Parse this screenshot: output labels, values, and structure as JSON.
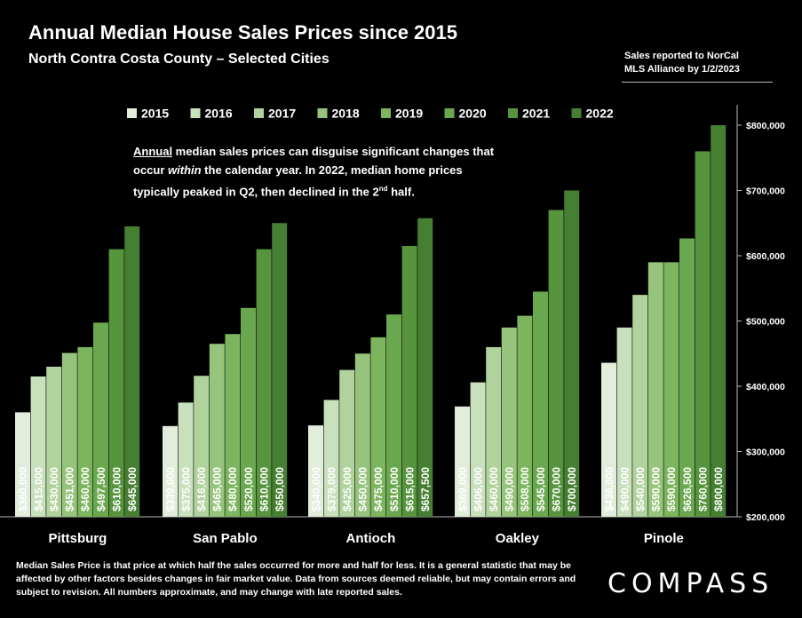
{
  "header": {
    "title": "Annual Median House Sales Prices since 2015",
    "subtitle": "North Contra Costa County – Selected Cities",
    "source_line1": "Sales reported to NorCal",
    "source_line2": "MLS Alliance by 1/2/2023"
  },
  "annotation": {
    "part1": "Annual",
    "part2": " median sales prices can disguise significant changes that occur ",
    "part3": "within",
    "part4": " the calendar year. In 2022, median home prices typically peaked in Q2, then declined in the 2",
    "part5": "nd",
    "part6": " half."
  },
  "footer": {
    "disclaimer": "Median Sales Price is that price at which half the sales occurred for more and half for less. It is a general statistic that may be affected by other factors besides changes in fair market value. Data from sources deemed reliable, but may contain errors and subject to revision.  All numbers approximate, and may change with late reported sales.",
    "logo": "COMPASS"
  },
  "chart_data": {
    "type": "bar",
    "categories": [
      "Pittsburg",
      "San Pablo",
      "Antioch",
      "Oakley",
      "Pinole"
    ],
    "series": [
      {
        "name": "2015",
        "color": "#e2eedb",
        "values": [
          360000,
          339000,
          340000,
          369000,
          436000
        ],
        "labels": [
          "$360,000",
          "$339,000",
          "$340,000",
          "$369,000",
          "$436,000"
        ]
      },
      {
        "name": "2016",
        "color": "#c9e0bc",
        "values": [
          415000,
          375000,
          379000,
          406000,
          490000
        ],
        "labels": [
          "$415,000",
          "$375,000",
          "$379,000",
          "$406,000",
          "$490,000"
        ]
      },
      {
        "name": "2017",
        "color": "#b0d29c",
        "values": [
          430000,
          416000,
          425000,
          460000,
          540000
        ],
        "labels": [
          "$430,000",
          "$416,000",
          "$425,000",
          "$460,000",
          "$540,000"
        ]
      },
      {
        "name": "2018",
        "color": "#97c47d",
        "values": [
          451000,
          465000,
          450000,
          490000,
          590000
        ],
        "labels": [
          "$451,000",
          "$465,000",
          "$450,000",
          "$490,000",
          "$590,000"
        ]
      },
      {
        "name": "2019",
        "color": "#7db55e",
        "values": [
          460000,
          480000,
          475000,
          508000,
          590000
        ],
        "labels": [
          "$460,000",
          "$480,000",
          "$475,000",
          "$508,000",
          "$590,000"
        ]
      },
      {
        "name": "2020",
        "color": "#6aa84f",
        "values": [
          497500,
          520000,
          510000,
          545000,
          626500
        ],
        "labels": [
          "$497,500",
          "$520,000",
          "$510,000",
          "$545,000",
          "$626,500"
        ]
      },
      {
        "name": "2021",
        "color": "#56953e",
        "values": [
          610000,
          610000,
          615000,
          670000,
          760000
        ],
        "labels": [
          "$610,000",
          "$610,000",
          "$615,000",
          "$670,000",
          "$760,000"
        ]
      },
      {
        "name": "2022",
        "color": "#467f32",
        "values": [
          645000,
          650000,
          657500,
          700000,
          800000
        ],
        "labels": [
          "$645,000",
          "$650,000",
          "$657,500",
          "$700,000",
          "$800,000"
        ]
      }
    ],
    "ylim": [
      200000,
      800000
    ],
    "yticks": [
      200000,
      300000,
      400000,
      500000,
      600000,
      700000,
      800000
    ],
    "ytick_labels": [
      "$200,000",
      "$300,000",
      "$400,000",
      "$500,000",
      "$600,000",
      "$700,000",
      "$800,000"
    ],
    "y_axis_side": "right",
    "legend_position": "top",
    "grid": false
  }
}
